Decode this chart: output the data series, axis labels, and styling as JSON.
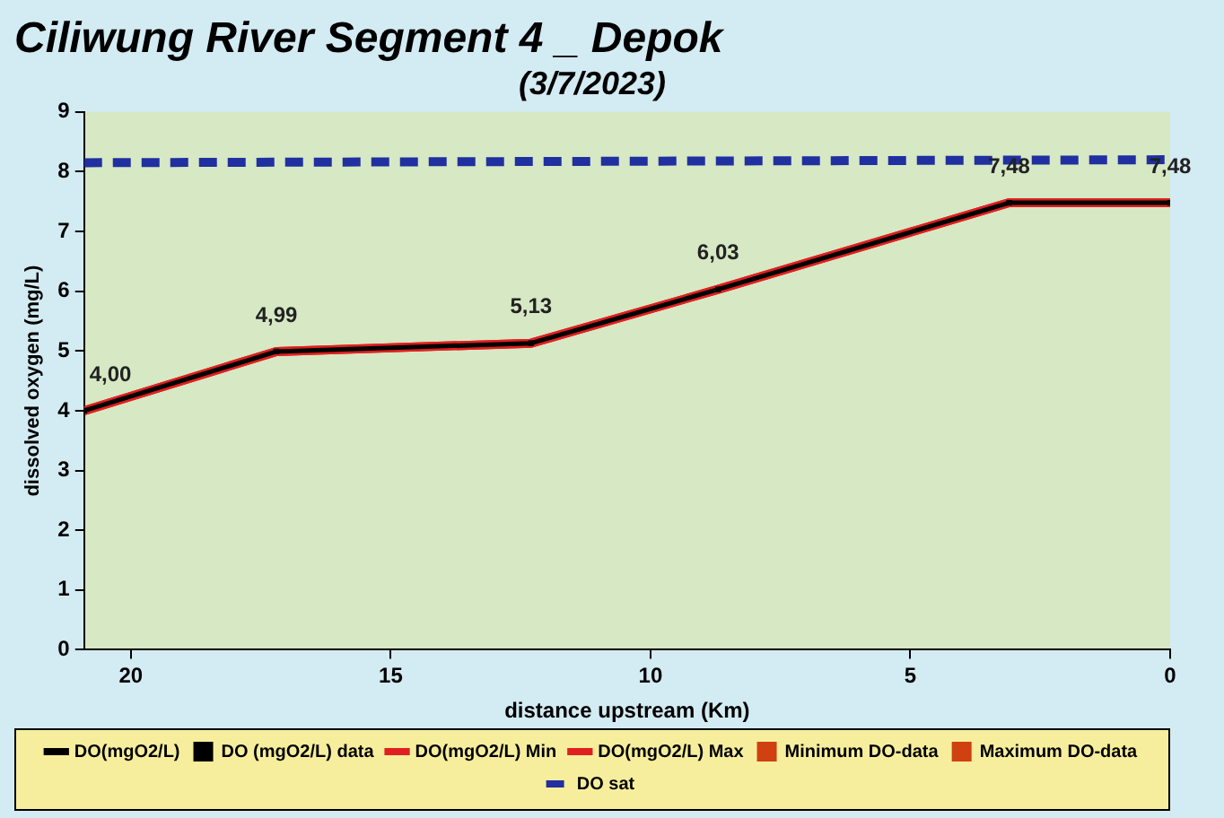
{
  "chart_data": {
    "type": "line",
    "title": "Ciliwung River Segment 4 _ Depok",
    "subtitle": "(3/7/2023)",
    "xlabel": "distance upstream (Km)",
    "ylabel": "dissolved oxygen (mg/L)",
    "xlim": [
      20.9,
      0
    ],
    "xticks": [
      20,
      15,
      10,
      5,
      0
    ],
    "ylim": [
      0,
      9
    ],
    "yticks": [
      0,
      1,
      2,
      3,
      4,
      5,
      6,
      7,
      8,
      9
    ],
    "grid": false,
    "legend": "bottom",
    "series": [
      {
        "name": "DO(mgO2/L)",
        "color": "#000000",
        "x": [
          20.9,
          17.2,
          12.3,
          8.7,
          3.1,
          0
        ],
        "values": [
          4.0,
          4.99,
          5.13,
          6.03,
          7.48,
          7.48
        ],
        "marker": "none",
        "line_style": "solid"
      },
      {
        "name": "DO (mgO2/L) data",
        "type": "scatter",
        "color": "#000000",
        "x": [
          20.9,
          17.2,
          12.3,
          8.7,
          3.1,
          0
        ],
        "values": [
          4.0,
          4.99,
          5.13,
          6.03,
          7.48,
          7.48
        ],
        "marker": "square",
        "value_labels": [
          "4,00",
          "4,99",
          "5,13",
          "6,03",
          "7,48",
          "7,48"
        ]
      },
      {
        "name": "DO(mgO2/L) Min",
        "color": "#e02020",
        "x": [
          20.9,
          17.2,
          12.3,
          8.7,
          3.1,
          0
        ],
        "values": [
          4.0,
          4.99,
          5.13,
          6.03,
          7.48,
          7.48
        ],
        "marker": "none",
        "line_style": "solid"
      },
      {
        "name": "DO(mgO2/L) Max",
        "color": "#e02020",
        "x": [
          20.9,
          17.2,
          12.3,
          8.7,
          3.1,
          0
        ],
        "values": [
          4.0,
          4.99,
          5.13,
          6.03,
          7.48,
          7.48
        ],
        "marker": "none",
        "line_style": "solid"
      },
      {
        "name": "Minimum DO-data",
        "type": "scatter",
        "color": "#d04010",
        "marker": "square"
      },
      {
        "name": "Maximum DO-data",
        "type": "scatter",
        "color": "#d04010",
        "marker": "square"
      },
      {
        "name": "DO sat",
        "color": "#2030a0",
        "x": [
          20.9,
          0
        ],
        "values": [
          8.15,
          8.2
        ],
        "marker": "none",
        "line_style": "dashed"
      }
    ]
  }
}
